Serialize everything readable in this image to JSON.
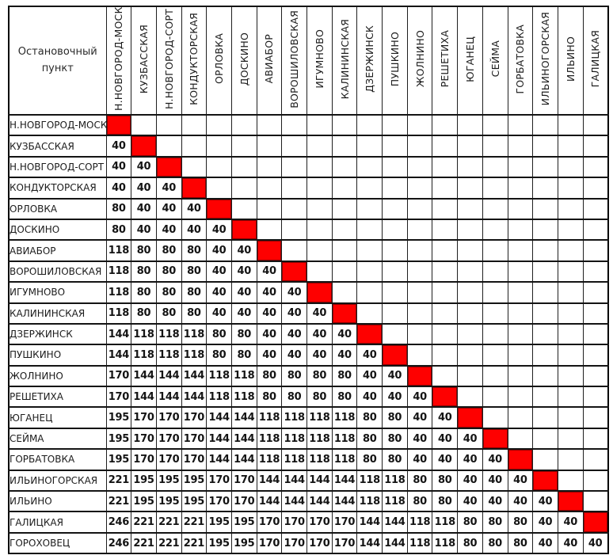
{
  "table": {
    "corner_label": "Остановочный пункт",
    "diagonal_color": "#fe0000",
    "columns": [
      "Н.НОВГОРОД-МОСК",
      "КУЗБАССКАЯ",
      "Н.НОВГОРОД-СОРТ",
      "КОНДУКТОРСКАЯ",
      "ОРЛОВКА",
      "ДОСКИНО",
      "АВИАБОР",
      "ВОРОШИЛОВСКАЯ",
      "ИГУМНОВО",
      "КАЛИНИНСКАЯ",
      "ДЗЕРЖИНСК",
      "ПУШКИНО",
      "ЖОЛНИНО",
      "РЕШЕТИХА",
      "ЮГАНЕЦ",
      "СЕЙМА",
      "ГОРБАТОВКА",
      "ИЛЬИНОГОРСКАЯ",
      "ИЛЬИНО",
      "ГАЛИЦКАЯ"
    ],
    "rows": [
      {
        "station": "Н.НОВГОРОД-МОСК",
        "fares": [],
        "diagonal_index": 0
      },
      {
        "station": "КУЗБАССКАЯ",
        "fares": [
          40
        ],
        "diagonal_index": 1
      },
      {
        "station": "Н.НОВГОРОД-СОРТ",
        "fares": [
          40,
          40
        ],
        "diagonal_index": 2
      },
      {
        "station": "КОНДУКТОРСКАЯ",
        "fares": [
          40,
          40,
          40
        ],
        "diagonal_index": 3
      },
      {
        "station": "ОРЛОВКА",
        "fares": [
          80,
          40,
          40,
          40
        ],
        "diagonal_index": 4
      },
      {
        "station": "ДОСКИНО",
        "fares": [
          80,
          40,
          40,
          40,
          40
        ],
        "diagonal_index": 5
      },
      {
        "station": "АВИАБОР",
        "fares": [
          118,
          80,
          80,
          80,
          40,
          40
        ],
        "diagonal_index": 6
      },
      {
        "station": "ВОРОШИЛОВСКАЯ",
        "fares": [
          118,
          80,
          80,
          80,
          40,
          40,
          40
        ],
        "diagonal_index": 7
      },
      {
        "station": "ИГУМНОВО",
        "fares": [
          118,
          80,
          80,
          80,
          40,
          40,
          40,
          40
        ],
        "diagonal_index": 8
      },
      {
        "station": "КАЛИНИНСКАЯ",
        "fares": [
          118,
          80,
          80,
          80,
          40,
          40,
          40,
          40,
          40
        ],
        "diagonal_index": 9
      },
      {
        "station": "ДЗЕРЖИНСК",
        "fares": [
          144,
          118,
          118,
          118,
          80,
          80,
          40,
          40,
          40,
          40
        ],
        "diagonal_index": 10
      },
      {
        "station": "ПУШКИНО",
        "fares": [
          144,
          118,
          118,
          118,
          80,
          80,
          40,
          40,
          40,
          40,
          40
        ],
        "diagonal_index": 11
      },
      {
        "station": "ЖОЛНИНО",
        "fares": [
          170,
          144,
          144,
          144,
          118,
          118,
          80,
          80,
          80,
          80,
          40,
          40
        ],
        "diagonal_index": 12
      },
      {
        "station": "РЕШЕТИХА",
        "fares": [
          170,
          144,
          144,
          144,
          118,
          118,
          80,
          80,
          80,
          80,
          40,
          40,
          40
        ],
        "diagonal_index": 13
      },
      {
        "station": "ЮГАНЕЦ",
        "fares": [
          195,
          170,
          170,
          170,
          144,
          144,
          118,
          118,
          118,
          118,
          80,
          80,
          40,
          40
        ],
        "diagonal_index": 14
      },
      {
        "station": "СЕЙМА",
        "fares": [
          195,
          170,
          170,
          170,
          144,
          144,
          118,
          118,
          118,
          118,
          80,
          80,
          40,
          40,
          40
        ],
        "diagonal_index": 15
      },
      {
        "station": "ГОРБАТОВКА",
        "fares": [
          195,
          170,
          170,
          170,
          144,
          144,
          118,
          118,
          118,
          118,
          80,
          80,
          40,
          40,
          40,
          40
        ],
        "diagonal_index": 16
      },
      {
        "station": "ИЛЬИНОГОРСКАЯ",
        "fares": [
          221,
          195,
          195,
          195,
          170,
          170,
          144,
          144,
          144,
          144,
          118,
          118,
          80,
          80,
          40,
          40,
          40
        ],
        "diagonal_index": 17
      },
      {
        "station": "ИЛЬИНО",
        "fares": [
          221,
          195,
          195,
          195,
          170,
          170,
          144,
          144,
          144,
          144,
          118,
          118,
          80,
          80,
          40,
          40,
          40,
          40
        ],
        "diagonal_index": 18
      },
      {
        "station": "ГАЛИЦКАЯ",
        "fares": [
          246,
          221,
          221,
          221,
          195,
          195,
          170,
          170,
          170,
          170,
          144,
          144,
          118,
          118,
          80,
          80,
          80,
          40,
          40
        ],
        "diagonal_index": 19
      },
      {
        "station": "ГОРОХОВЕЦ",
        "fares": [
          246,
          221,
          221,
          221,
          195,
          195,
          170,
          170,
          170,
          170,
          144,
          144,
          118,
          118,
          80,
          80,
          80,
          40,
          40,
          40
        ],
        "diagonal_index": null
      }
    ]
  }
}
